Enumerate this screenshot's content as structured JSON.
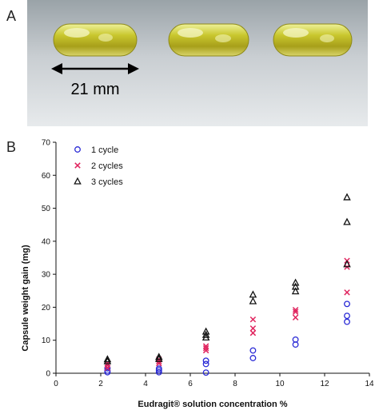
{
  "panels": {
    "a_label": "A",
    "b_label": "B"
  },
  "photo": {
    "scale_label": "21 mm"
  },
  "chart_data": {
    "type": "scatter",
    "title": "",
    "xlabel": "Eudragit® solution concentration %",
    "ylabel": "Capsule weight gain (mg)",
    "xlim": [
      0,
      14
    ],
    "ylim": [
      0,
      70
    ],
    "xticks": [
      0,
      2,
      4,
      6,
      8,
      10,
      12,
      14
    ],
    "yticks": [
      0,
      10,
      20,
      30,
      40,
      50,
      60,
      70
    ],
    "grid": false,
    "legend_position": "top-left",
    "series": [
      {
        "name": "1 cycle",
        "marker": "circle",
        "color": "#2b2bd6",
        "x": [
          2.3,
          2.3,
          2.3,
          4.6,
          4.6,
          4.6,
          6.7,
          6.7,
          6.7,
          8.8,
          8.8,
          10.7,
          10.7,
          13.0,
          13.0,
          13.0
        ],
        "y": [
          0.3,
          0.8,
          1.5,
          0.3,
          0.9,
          1.4,
          0.2,
          2.8,
          3.8,
          4.6,
          6.9,
          8.7,
          10.2,
          15.6,
          17.4,
          21.0
        ]
      },
      {
        "name": "2 cycles",
        "marker": "cross",
        "color": "#e0245e",
        "x": [
          2.3,
          2.3,
          2.3,
          4.6,
          4.6,
          4.6,
          6.7,
          6.7,
          6.7,
          8.8,
          8.8,
          8.8,
          10.7,
          10.7,
          10.7,
          13.0,
          13.0,
          13.0
        ],
        "y": [
          1.6,
          2.4,
          3.0,
          3.0,
          3.6,
          4.2,
          6.9,
          7.6,
          8.2,
          12.2,
          13.6,
          16.3,
          16.9,
          18.6,
          19.2,
          24.5,
          32.2,
          34.1
        ]
      },
      {
        "name": "3 cycles",
        "marker": "triangle",
        "color": "#111111",
        "x": [
          2.3,
          2.3,
          4.6,
          4.6,
          6.7,
          6.7,
          6.7,
          8.8,
          8.8,
          10.7,
          10.7,
          10.7,
          13.0,
          13.0,
          13.0
        ],
        "y": [
          3.6,
          4.2,
          4.3,
          4.9,
          10.8,
          11.6,
          12.6,
          21.8,
          23.8,
          24.8,
          26.2,
          27.4,
          33.0,
          45.8,
          53.3
        ]
      }
    ]
  }
}
